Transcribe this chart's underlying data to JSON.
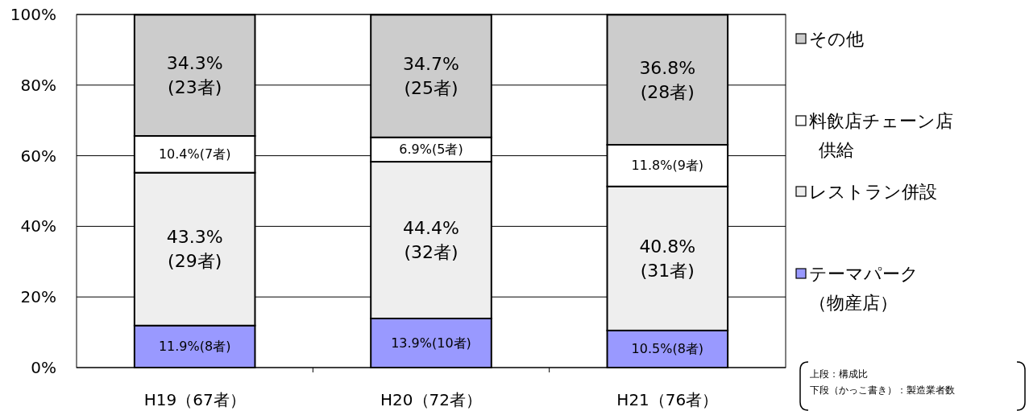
{
  "chart_data": {
    "type": "bar",
    "stacked": true,
    "categories": [
      "H19（67者）",
      "H20（72者）",
      "H21（76者）"
    ],
    "series": [
      {
        "name": "テーマパーク（物産店）",
        "color": "#9999ff",
        "values": [
          11.9,
          13.9,
          10.5
        ],
        "value_labels": [
          "11.9%(8者)",
          "13.9%(10者)",
          "10.5%(8者)"
        ]
      },
      {
        "name": "レストラン併設",
        "color": "#eeeeee",
        "values": [
          43.3,
          44.4,
          40.8
        ],
        "value_labels": [
          "43.3%\n(29者)",
          "44.4%\n(32者)",
          "40.8%\n(31者)"
        ]
      },
      {
        "name": "料飲店チェーン店供給",
        "color": "#ffffff",
        "values": [
          10.4,
          6.9,
          11.8
        ],
        "value_labels": [
          "10.4%(7者)",
          "6.9%(5者)",
          "11.8%(9者)"
        ]
      },
      {
        "name": "その他",
        "color": "#cccccc",
        "values": [
          34.3,
          34.7,
          36.8
        ],
        "value_labels": [
          "34.3%\n(23者)",
          "34.7%\n(25者)",
          "36.8%\n(28者)"
        ]
      }
    ],
    "ylim": [
      0,
      100
    ],
    "yticks": [
      {
        "value": 0,
        "label": "0%"
      },
      {
        "value": 20,
        "label": "20%"
      },
      {
        "value": 40,
        "label": "40%"
      },
      {
        "value": 60,
        "label": "60%"
      },
      {
        "value": 80,
        "label": "80%"
      },
      {
        "value": 100,
        "label": "100%"
      }
    ],
    "grid": "y",
    "legend": "right",
    "annotations": [
      "上段：構成比",
      "下段（かっこ書き）：製造業者数"
    ]
  }
}
